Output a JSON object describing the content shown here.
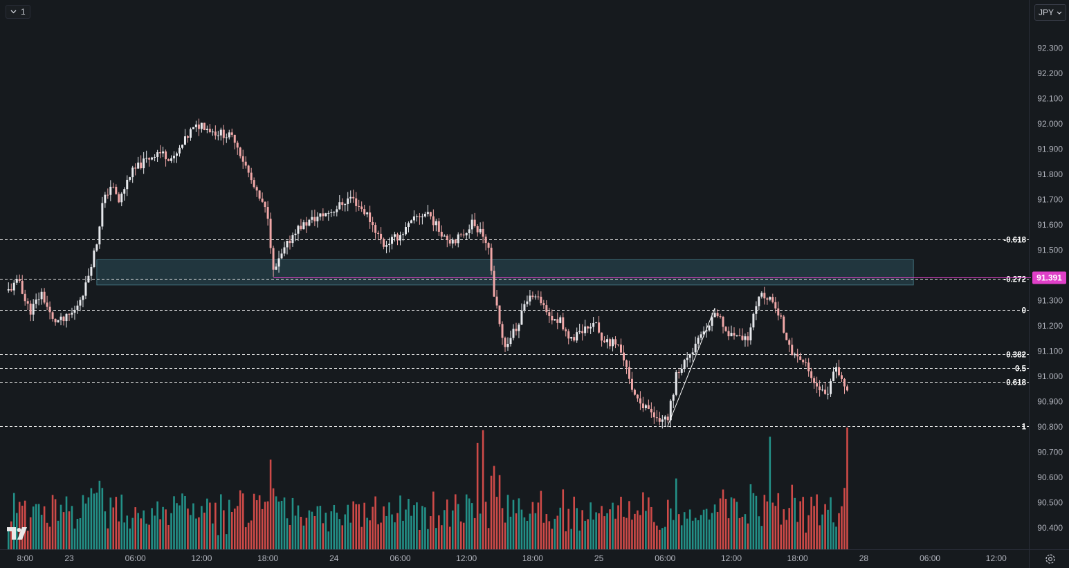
{
  "toolbar": {
    "interval_label": "1",
    "currency_label": "JPY"
  },
  "colors": {
    "background": "#161a1e",
    "up": "#26a69a",
    "down": "#ef5350",
    "up_candle": "#e6e8ec",
    "down_candle": "#f0a7a7",
    "price_line": "#e040c8",
    "zone": "#2c4f5a"
  },
  "icons": {
    "logo": "tradingview-logo",
    "settings": "gear-icon",
    "interval": "chevron-down-icon",
    "currency": "chevron-down-icon"
  },
  "chart_data": {
    "type": "candlestick",
    "instrument_currency": "JPY",
    "current_price": {
      "label": "91.391",
      "value": 91.391
    },
    "y_ticks": [
      "92.300",
      "92.200",
      "92.100",
      "92.000",
      "91.900",
      "91.800",
      "91.700",
      "91.600",
      "91.500",
      "91.400",
      "91.300",
      "91.200",
      "91.100",
      "91.000",
      "90.900",
      "90.800",
      "90.700",
      "90.600",
      "90.500",
      "90.400"
    ],
    "y_tick_values": [
      92.3,
      92.2,
      92.1,
      92.0,
      91.9,
      91.8,
      91.7,
      91.6,
      91.5,
      91.4,
      91.3,
      91.2,
      91.1,
      91.0,
      90.9,
      90.8,
      90.7,
      90.6,
      90.5,
      90.4
    ],
    "x_ticks": [
      "8:00",
      "23",
      "06:00",
      "12:00",
      "18:00",
      "24",
      "06:00",
      "12:00",
      "18:00",
      "25",
      "06:00",
      "12:00",
      "18:00",
      "28",
      "06:00",
      "12:00"
    ],
    "x_tick_hours": [
      -4,
      0,
      6,
      12,
      18,
      24,
      30,
      36,
      42,
      48,
      54,
      60,
      66,
      72,
      78,
      84
    ],
    "fib_levels": [
      {
        "label": "-0.618",
        "value": 91.543
      },
      {
        "label": "-0.272",
        "value": 91.386
      },
      {
        "label": "0",
        "value": 91.262
      },
      {
        "label": "0.382",
        "value": 91.087
      },
      {
        "label": "0.5",
        "value": 91.032
      },
      {
        "label": "0.618",
        "value": 90.978
      },
      {
        "label": "1",
        "value": 90.803
      }
    ],
    "zone": {
      "top": 91.462,
      "bottom": 91.362,
      "start_hour": 2.5,
      "end_hour": 76.5
    },
    "trend_line": {
      "from_hour": 54.2,
      "from_value": 90.8,
      "to_hour": 58.5,
      "to_value": 91.27
    },
    "keypoints": [
      [
        -5.5,
        91.34
      ],
      [
        -4.5,
        91.38
      ],
      [
        -4.0,
        91.3
      ],
      [
        -3.5,
        91.26
      ],
      [
        -2.5,
        91.33
      ],
      [
        -1.5,
        91.22
      ],
      [
        -0.5,
        91.22
      ],
      [
        0.5,
        91.26
      ],
      [
        1.5,
        91.36
      ],
      [
        2.0,
        91.45
      ],
      [
        2.5,
        91.53
      ],
      [
        3.0,
        91.68
      ],
      [
        3.8,
        91.76
      ],
      [
        4.5,
        91.69
      ],
      [
        5.5,
        91.8
      ],
      [
        6.5,
        91.84
      ],
      [
        8.0,
        91.89
      ],
      [
        9.5,
        91.86
      ],
      [
        11.0,
        91.97
      ],
      [
        12.0,
        92.0
      ],
      [
        13.0,
        91.97
      ],
      [
        14.0,
        91.96
      ],
      [
        15.0,
        91.94
      ],
      [
        16.0,
        91.83
      ],
      [
        17.0,
        91.72
      ],
      [
        18.0,
        91.64
      ],
      [
        18.5,
        91.41
      ],
      [
        19.5,
        91.5
      ],
      [
        20.5,
        91.58
      ],
      [
        22.0,
        91.62
      ],
      [
        24.0,
        91.66
      ],
      [
        25.5,
        91.71
      ],
      [
        27.0,
        91.64
      ],
      [
        28.5,
        91.52
      ],
      [
        30.0,
        91.56
      ],
      [
        31.5,
        91.63
      ],
      [
        32.5,
        91.65
      ],
      [
        33.5,
        91.58
      ],
      [
        34.5,
        91.54
      ],
      [
        35.5,
        91.55
      ],
      [
        36.5,
        91.61
      ],
      [
        37.5,
        91.56
      ],
      [
        38.0,
        91.5
      ],
      [
        38.5,
        91.33
      ],
      [
        39.0,
        91.2
      ],
      [
        39.5,
        91.13
      ],
      [
        40.5,
        91.19
      ],
      [
        41.5,
        91.3
      ],
      [
        42.5,
        91.31
      ],
      [
        43.5,
        91.23
      ],
      [
        44.5,
        91.22
      ],
      [
        45.5,
        91.14
      ],
      [
        46.5,
        91.18
      ],
      [
        47.5,
        91.22
      ],
      [
        48.5,
        91.13
      ],
      [
        49.5,
        91.13
      ],
      [
        50.5,
        91.05
      ],
      [
        51.0,
        90.95
      ],
      [
        52.0,
        90.88
      ],
      [
        53.0,
        90.84
      ],
      [
        54.2,
        90.82
      ],
      [
        55.0,
        91.0
      ],
      [
        56.0,
        91.08
      ],
      [
        57.0,
        91.14
      ],
      [
        58.0,
        91.19
      ],
      [
        58.5,
        91.26
      ],
      [
        59.5,
        91.18
      ],
      [
        60.5,
        91.15
      ],
      [
        61.5,
        91.14
      ],
      [
        62.0,
        91.23
      ],
      [
        62.5,
        91.33
      ],
      [
        63.5,
        91.31
      ],
      [
        64.5,
        91.22
      ],
      [
        65.5,
        91.1
      ],
      [
        66.5,
        91.06
      ],
      [
        67.5,
        90.97
      ],
      [
        68.5,
        90.92
      ],
      [
        69.5,
        91.03
      ],
      [
        70.0,
        90.98
      ],
      [
        70.5,
        90.96
      ]
    ],
    "volume": {
      "scale_note": "relative",
      "spike_hours": [
        37.0,
        37.5,
        63.5,
        70.5
      ]
    }
  }
}
